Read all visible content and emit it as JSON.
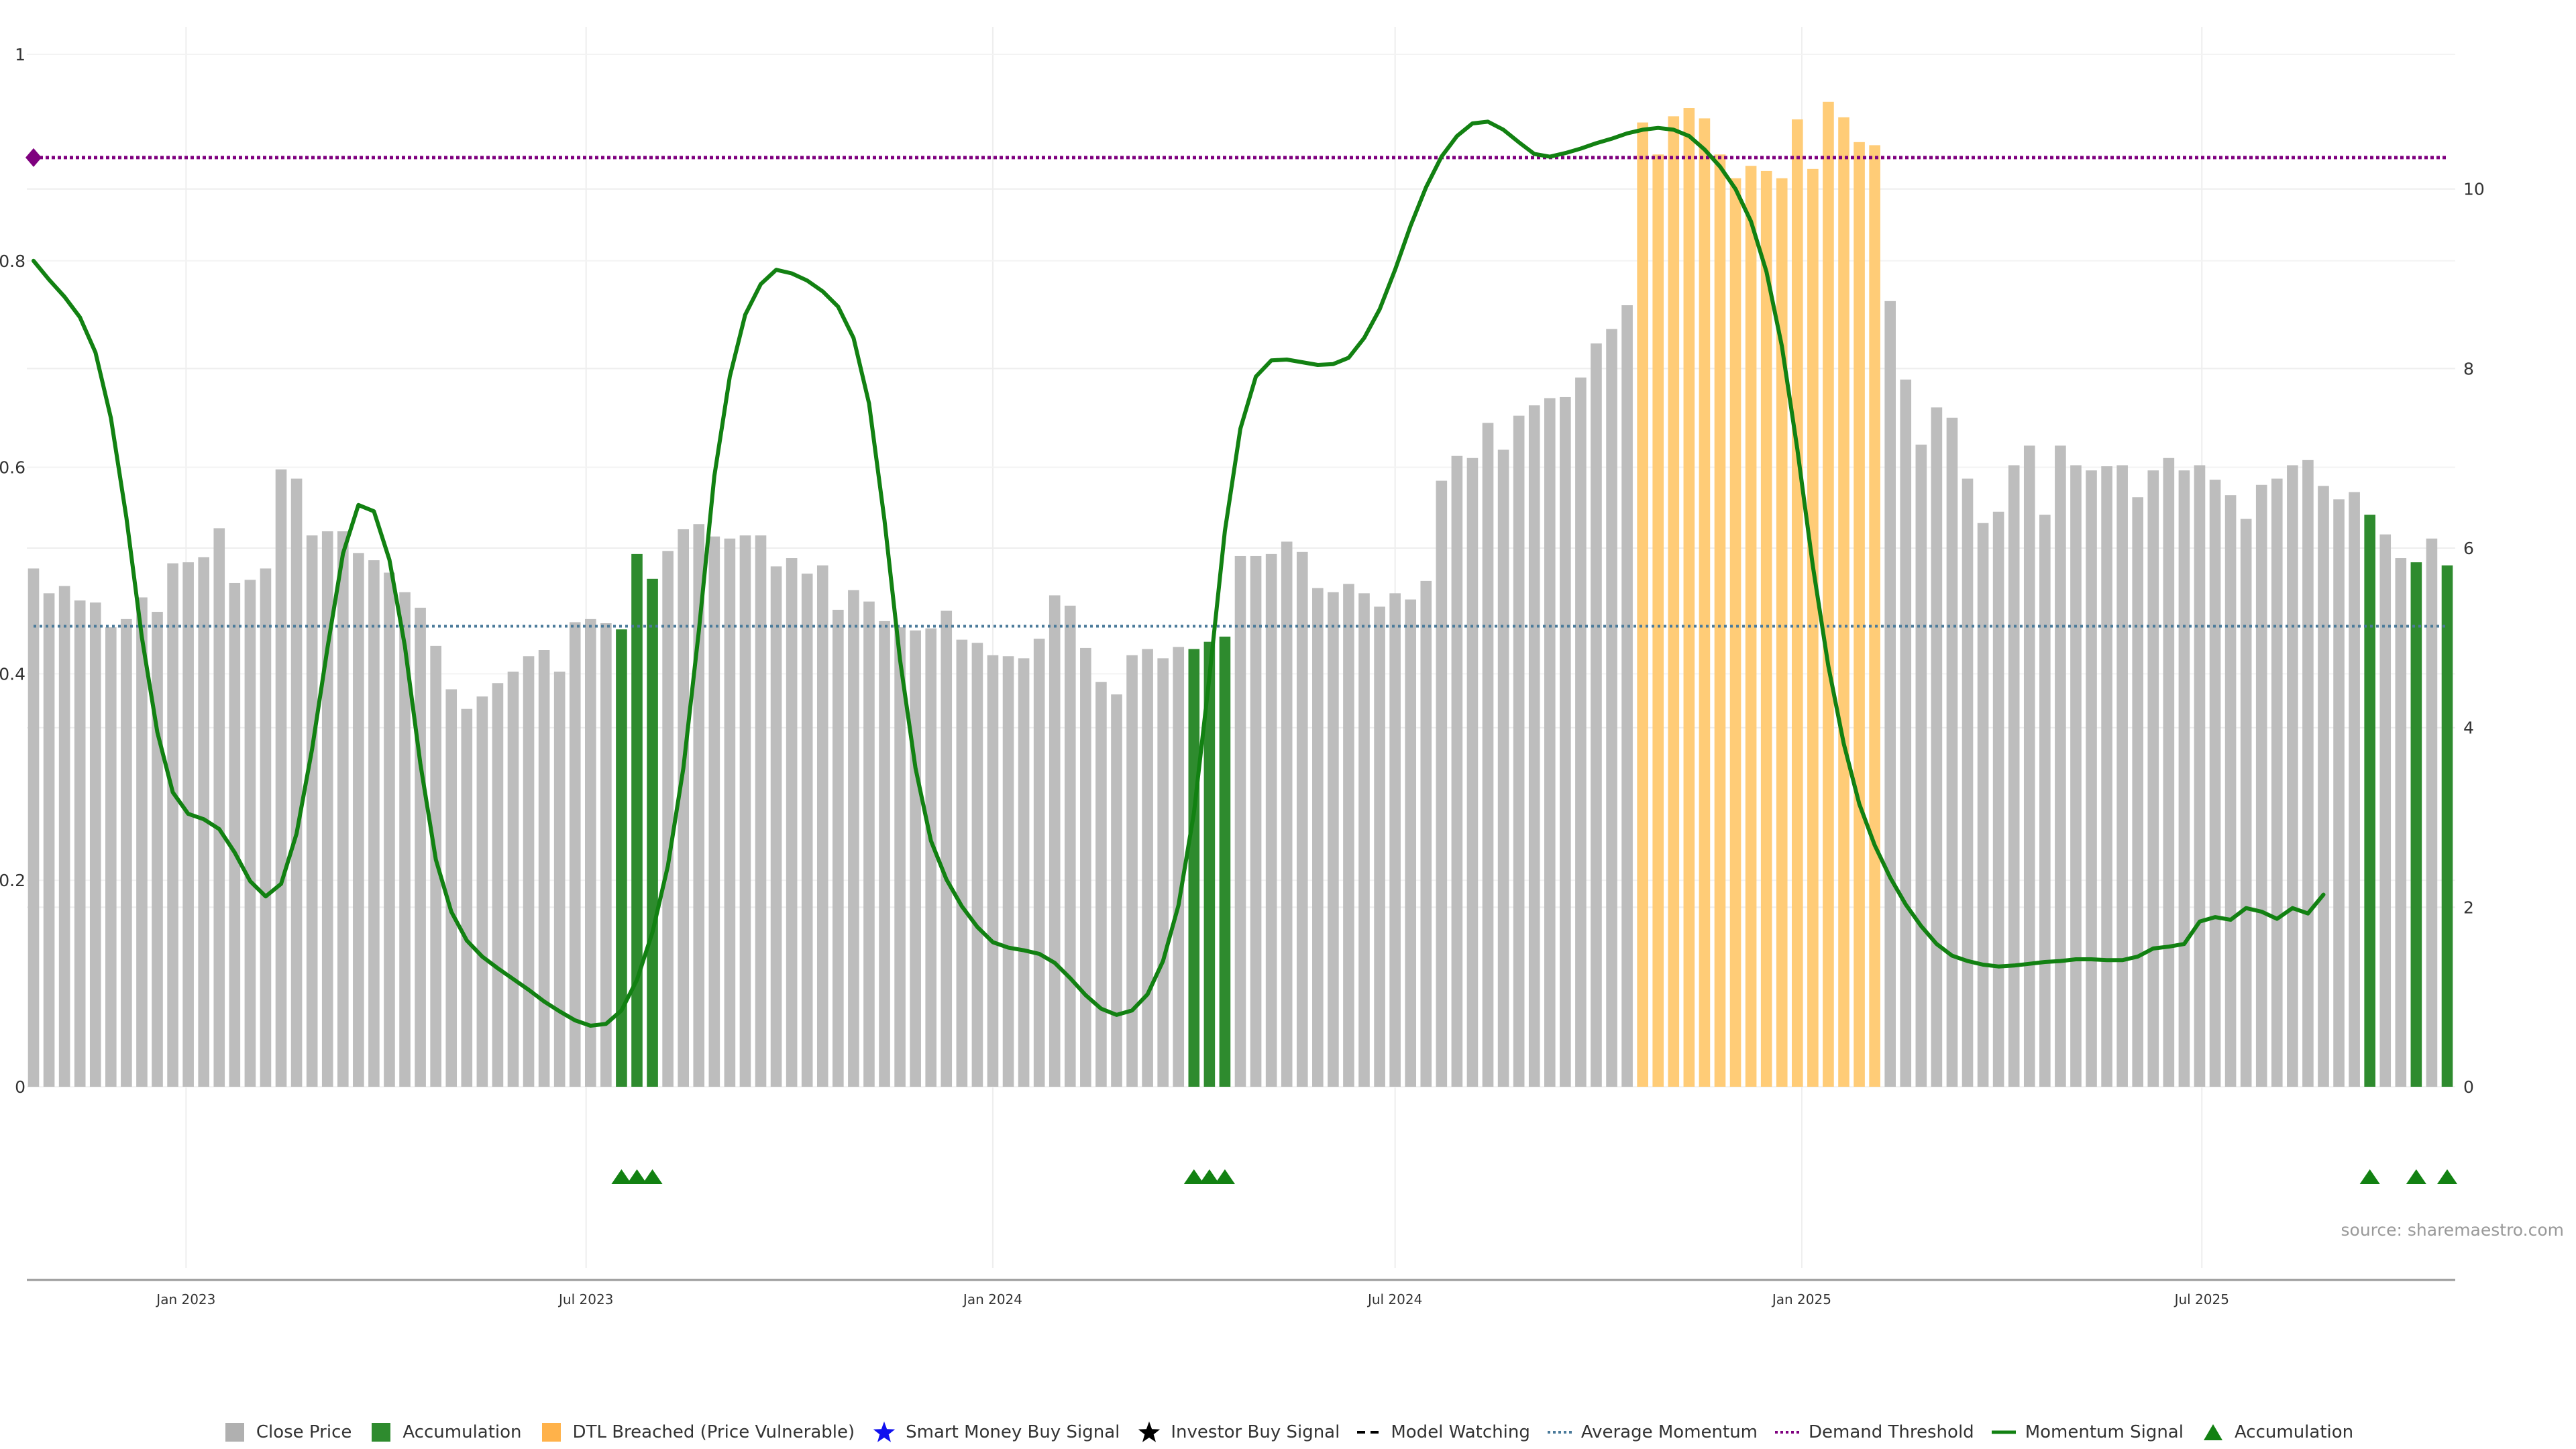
{
  "chart_data": {
    "type": "bar",
    "x_tick_labels": [
      "Jan 2023",
      "Jul 2023",
      "Jan 2024",
      "Jul 2024",
      "Jan 2025",
      "Jul 2025"
    ],
    "left_axis": {
      "ylim": [
        0,
        1
      ],
      "tick_labels": [
        "0",
        "0.2",
        "0.4",
        "0.6",
        "0.8",
        "1"
      ]
    },
    "right_axis": {
      "ylim": [
        0,
        11.5
      ],
      "tick_labels": [
        "0",
        "2",
        "4",
        "6",
        "8",
        "10"
      ]
    },
    "source_text": "source: sharemaestro.com",
    "colors": {
      "close_price": "#bdbdbd",
      "accumulation": "#2e8b2e",
      "dtl_breached": "#ffcc77",
      "momentum": "#128112",
      "average_momentum": "#4a7a9a",
      "demand_threshold": "#7f007f",
      "grid": "#eeeeee"
    },
    "bar_width_weeks": 0.72,
    "series": [
      {
        "name": "Close Price",
        "start_date": "2022-10-24",
        "interval_days": 7,
        "values": [
          0.502,
          0.478,
          0.485,
          0.471,
          0.469,
          0.445,
          0.453,
          0.474,
          0.46,
          0.507,
          0.508,
          0.513,
          0.541,
          0.488,
          0.491,
          0.502,
          0.598,
          0.589,
          0.534,
          0.538,
          0.538,
          0.517,
          0.51,
          0.498,
          0.479,
          0.464,
          0.427,
          0.385,
          0.366,
          0.378,
          0.391,
          0.402,
          0.417,
          0.423,
          0.402,
          0.45,
          0.453,
          0.449,
          0.443,
          0.516,
          0.492,
          0.519,
          0.54,
          0.545,
          0.533,
          0.531,
          0.534,
          0.534,
          0.504,
          0.512,
          0.497,
          0.505,
          0.462,
          0.481,
          0.47,
          0.451,
          0.445,
          0.442,
          0.444,
          0.461,
          0.433,
          0.43,
          0.418,
          0.417,
          0.415,
          0.434,
          0.476,
          0.466,
          0.425,
          0.392,
          0.38,
          0.418,
          0.424,
          0.415,
          0.426,
          0.424,
          0.431,
          0.436,
          0.514,
          0.514,
          0.516,
          0.528,
          0.518,
          0.483,
          0.479,
          0.487,
          0.478,
          0.465,
          0.478,
          0.472,
          0.49,
          0.587,
          0.611,
          0.609,
          0.643,
          0.617,
          0.65,
          0.66,
          0.667,
          0.668,
          0.687,
          0.72,
          0.734,
          0.757,
          0.934,
          0.903,
          0.94,
          0.948,
          0.938,
          0.903,
          0.88,
          0.892,
          0.887,
          0.88,
          0.937,
          0.889,
          0.954,
          0.939,
          0.915,
          0.912,
          0.761,
          0.685,
          0.622,
          0.658,
          0.648,
          0.589,
          0.546,
          0.557,
          0.602,
          0.621,
          0.554,
          0.621,
          0.602,
          0.597,
          0.601,
          0.602,
          0.571,
          0.597,
          0.609,
          0.597,
          0.602,
          0.588,
          0.573,
          0.55,
          0.583,
          0.589,
          0.602,
          0.607,
          0.582,
          0.569,
          0.576,
          0.554,
          0.535,
          0.512,
          0.508,
          0.531,
          0.505
        ],
        "accumulation_indices": [
          38,
          39,
          40,
          75,
          76,
          77,
          151,
          154,
          156
        ],
        "dtl_breached_indices": [
          104,
          105,
          106,
          107,
          108,
          109,
          110,
          111,
          112,
          113,
          114,
          115,
          116,
          117,
          118,
          119
        ]
      },
      {
        "name": "Momentum Signal",
        "values": [
          9.2,
          8.99,
          8.8,
          8.57,
          8.18,
          7.45,
          6.34,
          5.01,
          3.95,
          3.28,
          3.04,
          2.98,
          2.87,
          2.61,
          2.29,
          2.12,
          2.26,
          2.82,
          3.76,
          4.89,
          5.94,
          6.48,
          6.41,
          5.87,
          4.91,
          3.6,
          2.53,
          1.95,
          1.63,
          1.45,
          1.32,
          1.2,
          1.08,
          0.95,
          0.84,
          0.74,
          0.68,
          0.7,
          0.85,
          1.19,
          1.72,
          2.46,
          3.55,
          5.08,
          6.8,
          7.91,
          8.6,
          8.94,
          9.1,
          9.06,
          8.98,
          8.86,
          8.69,
          8.34,
          7.61,
          6.31,
          4.76,
          3.55,
          2.74,
          2.31,
          2.01,
          1.78,
          1.61,
          1.55,
          1.52,
          1.48,
          1.38,
          1.21,
          1.02,
          0.87,
          0.8,
          0.85,
          1.03,
          1.4,
          2.02,
          3.05,
          4.57,
          6.19,
          7.33,
          7.91,
          8.09,
          8.1,
          8.07,
          8.04,
          8.05,
          8.12,
          8.34,
          8.66,
          9.1,
          9.59,
          10.02,
          10.36,
          10.59,
          10.73,
          10.75,
          10.66,
          10.52,
          10.39,
          10.36,
          10.4,
          10.45,
          10.51,
          10.56,
          10.62,
          10.66,
          10.68,
          10.66,
          10.59,
          10.44,
          10.25,
          10,
          9.64,
          9.08,
          8.25,
          7.1,
          5.8,
          4.69,
          3.82,
          3.15,
          2.69,
          2.33,
          2.03,
          1.79,
          1.59,
          1.46,
          1.4,
          1.36,
          1.34,
          1.35,
          1.37,
          1.39,
          1.4,
          1.42,
          1.42,
          1.41,
          1.41,
          1.45,
          1.54,
          1.56,
          1.59,
          1.84,
          1.89,
          1.86,
          1.99,
          1.95,
          1.87,
          1.99,
          1.93,
          2.14
        ]
      },
      {
        "name": "Average Momentum",
        "value": 5.13
      },
      {
        "name": "Demand Threshold",
        "value": 10.35
      },
      {
        "name": "Accumulation",
        "marker_indices": [
          38,
          39,
          40,
          75,
          76,
          77,
          151,
          154,
          156
        ]
      }
    ],
    "legend_position": "bottom-center",
    "legend": [
      {
        "label": "Close Price",
        "icon": "square",
        "color": "#b0b0b0"
      },
      {
        "label": "Accumulation",
        "icon": "square",
        "color": "#2e8b2e"
      },
      {
        "label": "DTL Breached (Price Vulnerable)",
        "icon": "square",
        "color": "#ffb24a"
      },
      {
        "label": "Smart Money Buy Signal",
        "icon": "star",
        "color": "#1010ee"
      },
      {
        "label": "Investor Buy Signal",
        "icon": "star",
        "color": "#000000"
      },
      {
        "label": "Model Watching",
        "icon": "dash",
        "color": "#000000"
      },
      {
        "label": "Average Momentum",
        "icon": "dotted",
        "color": "#4a7a9a"
      },
      {
        "label": "Demand Threshold",
        "icon": "dotted",
        "color": "#7f007f"
      },
      {
        "label": "Momentum Signal",
        "icon": "line",
        "color": "#128112"
      },
      {
        "label": "Accumulation",
        "icon": "triangle",
        "color": "#128112"
      }
    ]
  }
}
